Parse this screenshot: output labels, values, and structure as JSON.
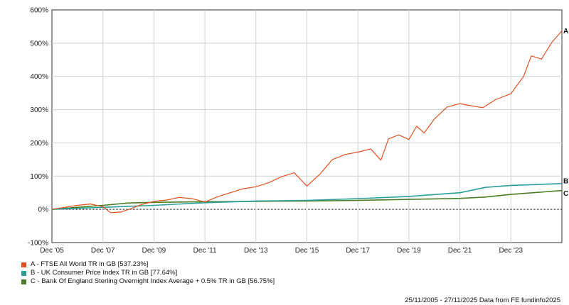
{
  "chart_data": {
    "type": "line",
    "x_ticks": [
      "Dec '05",
      "Dec '07",
      "Dec '09",
      "Dec '11",
      "Dec '13",
      "Dec '15",
      "Dec '17",
      "Dec '19",
      "Dec '21",
      "Dec '23"
    ],
    "y_ticks": [
      "600%",
      "500%",
      "400%",
      "300%",
      "200%",
      "100%",
      "0%",
      "-100%"
    ],
    "ylim": [
      -100,
      600
    ],
    "x_range": [
      "2005-11-25",
      "2025-11-27"
    ],
    "grid": true,
    "legend_position": "bottom-left",
    "series": [
      {
        "id": "A",
        "name": "A - FTSE All World TR in GB [537.23%]",
        "color": "#e0501e",
        "end_label": "A",
        "x": [
          2005.9,
          2006.4,
          2006.9,
          2007.4,
          2007.9,
          2008.2,
          2008.6,
          2009.0,
          2009.4,
          2009.9,
          2010.4,
          2010.9,
          2011.4,
          2011.9,
          2012.4,
          2012.9,
          2013.4,
          2013.9,
          2014.4,
          2014.9,
          2015.4,
          2015.9,
          2016.4,
          2016.9,
          2017.4,
          2017.9,
          2018.4,
          2018.8,
          2019.1,
          2019.5,
          2019.9,
          2020.2,
          2020.5,
          2020.9,
          2021.4,
          2021.9,
          2022.3,
          2022.8,
          2023.3,
          2023.9,
          2024.4,
          2024.7,
          2025.1,
          2025.5,
          2025.9
        ],
        "y": [
          0,
          6,
          12,
          16,
          8,
          -10,
          -8,
          2,
          14,
          24,
          28,
          36,
          32,
          22,
          38,
          50,
          62,
          68,
          80,
          98,
          110,
          70,
          105,
          150,
          165,
          172,
          182,
          148,
          212,
          224,
          210,
          250,
          230,
          272,
          308,
          318,
          312,
          306,
          330,
          348,
          400,
          462,
          452,
          502,
          537
        ]
      },
      {
        "id": "B",
        "name": "B - UK Consumer Price Index TR in GB [77.64%]",
        "color": "#2a9f9a",
        "end_label": "B",
        "x": [
          2005.9,
          2007.9,
          2009.9,
          2011.9,
          2013.9,
          2015.9,
          2017.9,
          2019.9,
          2021.9,
          2022.9,
          2023.9,
          2025.9
        ],
        "y": [
          0,
          6,
          12,
          20,
          25,
          27,
          32,
          39,
          50,
          66,
          72,
          77.6
        ]
      },
      {
        "id": "C",
        "name": "C - Bank Of England Sterling Overnight Index Average + 0.5% TR in GB [56.75%]",
        "color": "#4d7d24",
        "end_label": "C",
        "x": [
          2005.9,
          2007.9,
          2008.9,
          2009.9,
          2011.9,
          2013.9,
          2015.9,
          2017.9,
          2019.9,
          2021.9,
          2022.9,
          2023.9,
          2025.9
        ],
        "y": [
          0,
          12,
          19,
          21,
          23,
          24,
          25,
          27,
          30,
          33,
          37,
          45,
          56.75
        ]
      }
    ]
  },
  "footer": "25/11/2005 - 27/11/2025 Data from FE fundinfo2025"
}
